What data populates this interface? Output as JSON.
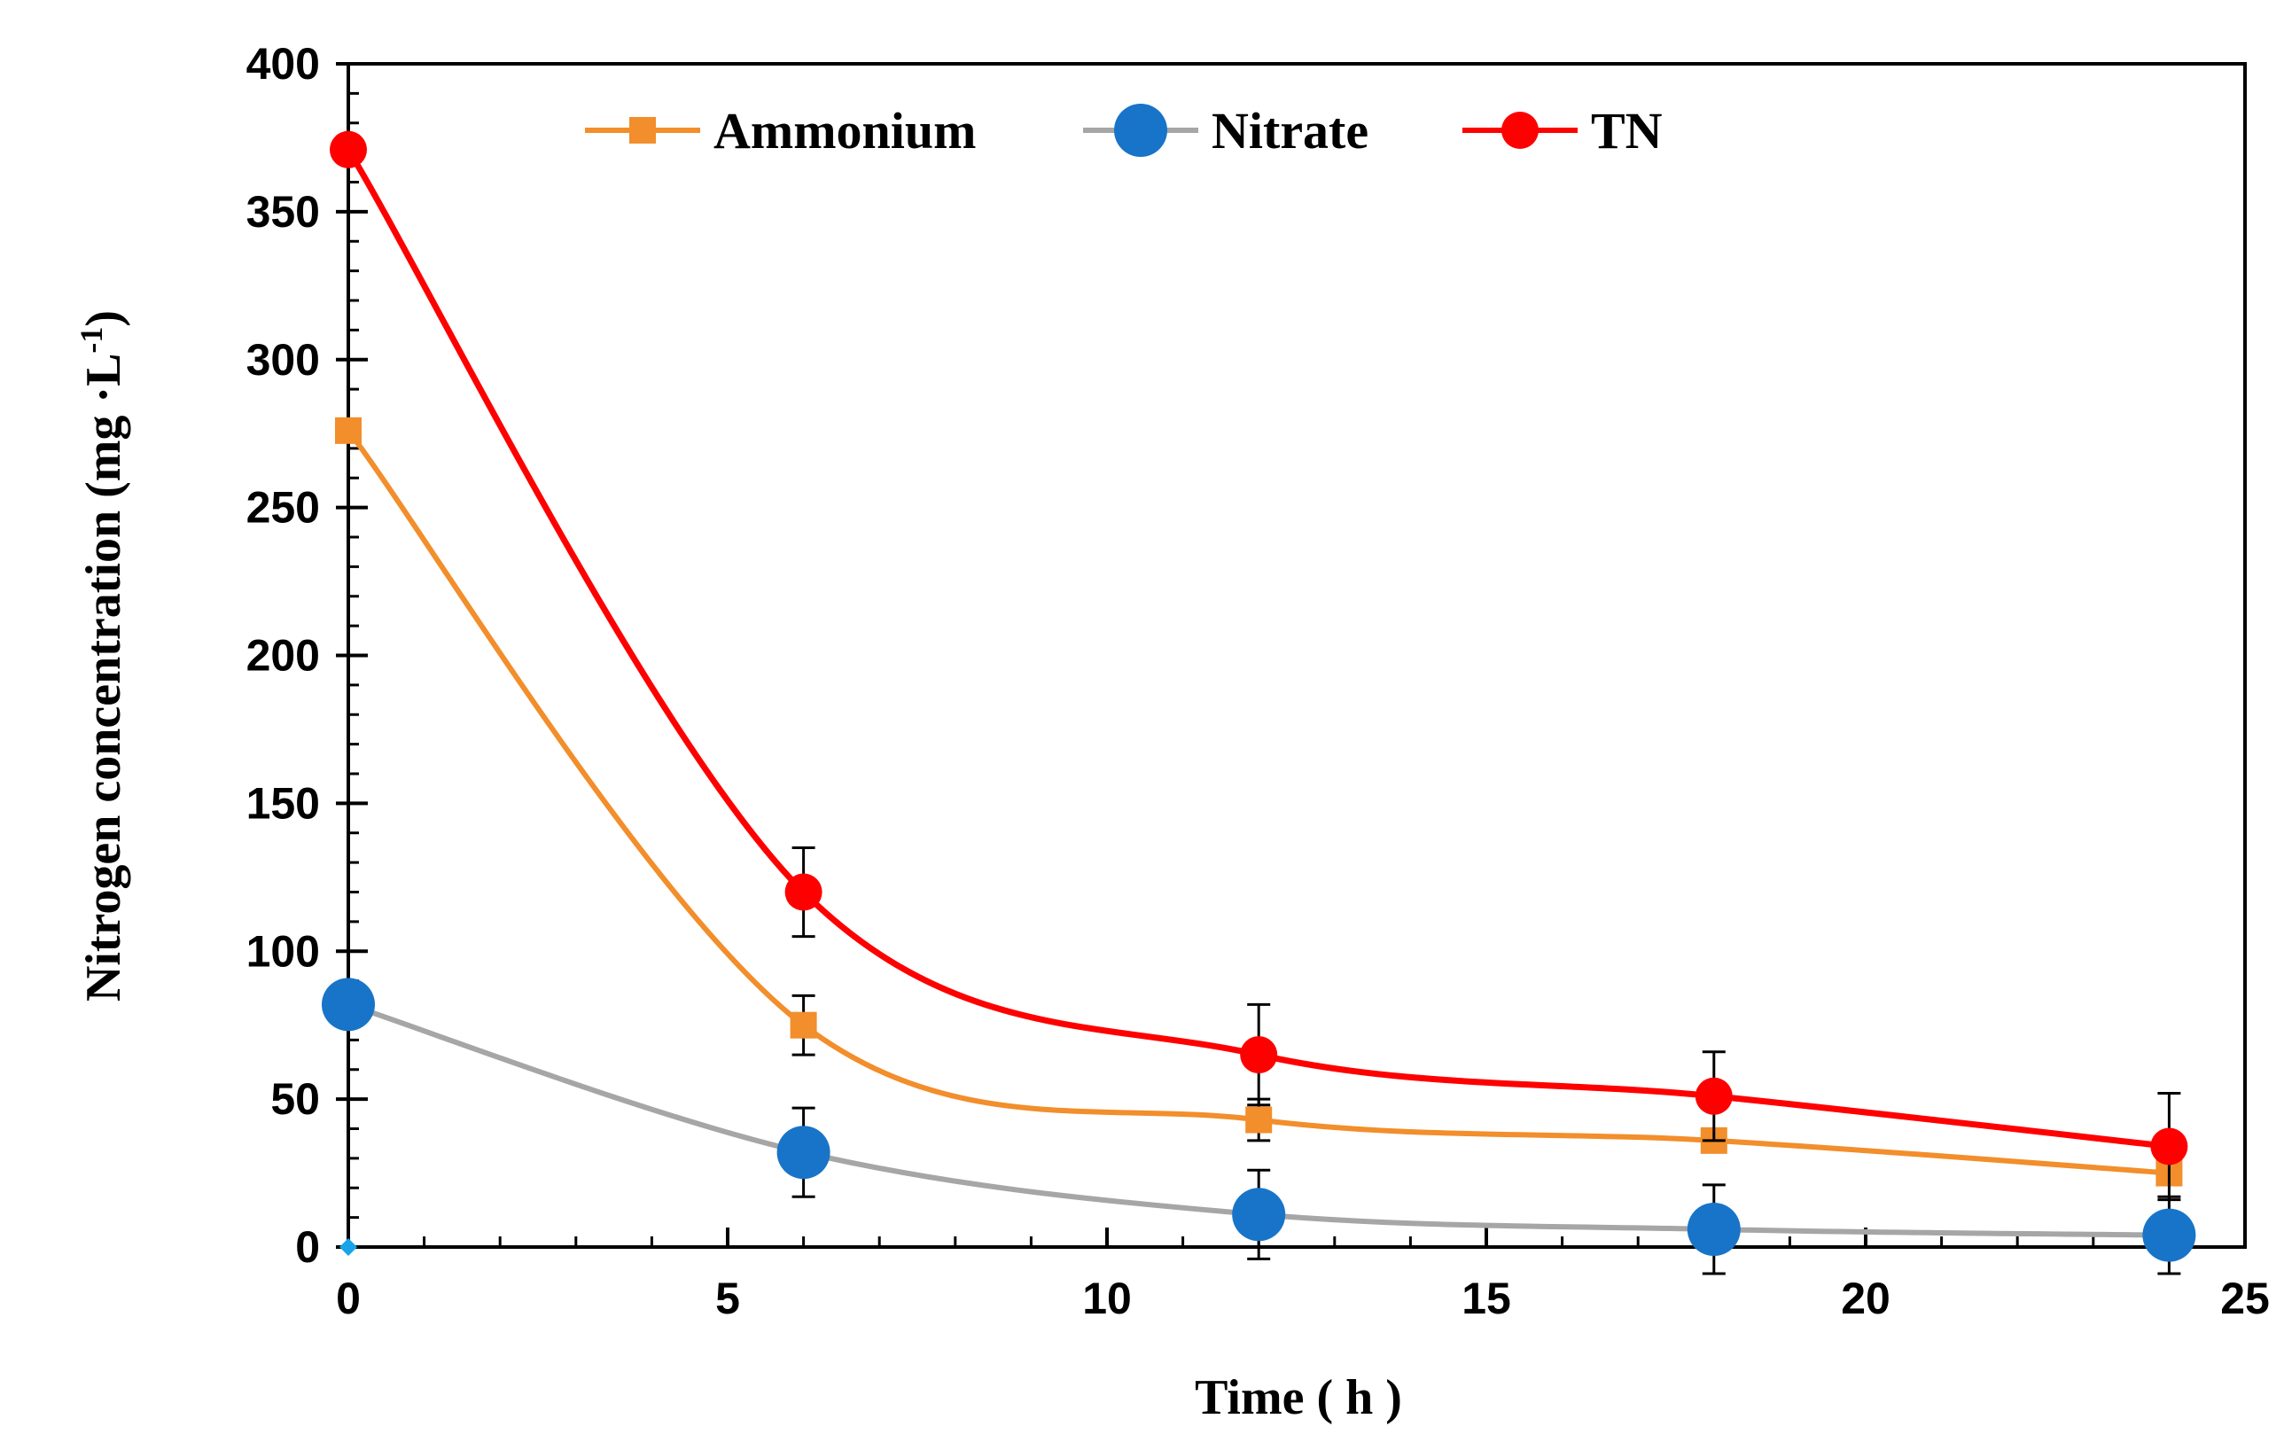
{
  "chart_data": {
    "type": "line",
    "title": "",
    "xlabel": "Time ( h )",
    "ylabel": "Nitrogen concentration  (mg ·L-1)",
    "ylabel_parts": {
      "main": "Nitrogen concentration  (mg ·L",
      "sup": "-1",
      "close": ")"
    },
    "xlim": [
      0,
      25
    ],
    "ylim": [
      0,
      400
    ],
    "xticks": [
      0,
      5,
      10,
      15,
      20,
      25
    ],
    "yticks": [
      0,
      50,
      100,
      150,
      200,
      250,
      300,
      350,
      400
    ],
    "x_minor_step": 1,
    "y_minor_step": 10,
    "grid": false,
    "legend": {
      "position": "top-center",
      "orientation": "horizontal"
    },
    "x": [
      0,
      6,
      12,
      18,
      24
    ],
    "series": [
      {
        "name": "Ammonium",
        "color": "#f28e2b",
        "marker": "square",
        "values": [
          276,
          75,
          43,
          36,
          25
        ],
        "errors": [
          0,
          10,
          7,
          3,
          4
        ]
      },
      {
        "name": "Nitrate",
        "color": "#a6a6a6",
        "marker_color": "#1874c8",
        "marker": "circle",
        "values": [
          82,
          32,
          11,
          6,
          4
        ],
        "errors": [
          0,
          15,
          15,
          15,
          13
        ]
      },
      {
        "name": "TN",
        "color": "#ff0000",
        "marker": "circle",
        "values": [
          371,
          120,
          65,
          51,
          34
        ],
        "errors": [
          0,
          15,
          17,
          15,
          18
        ]
      }
    ]
  }
}
